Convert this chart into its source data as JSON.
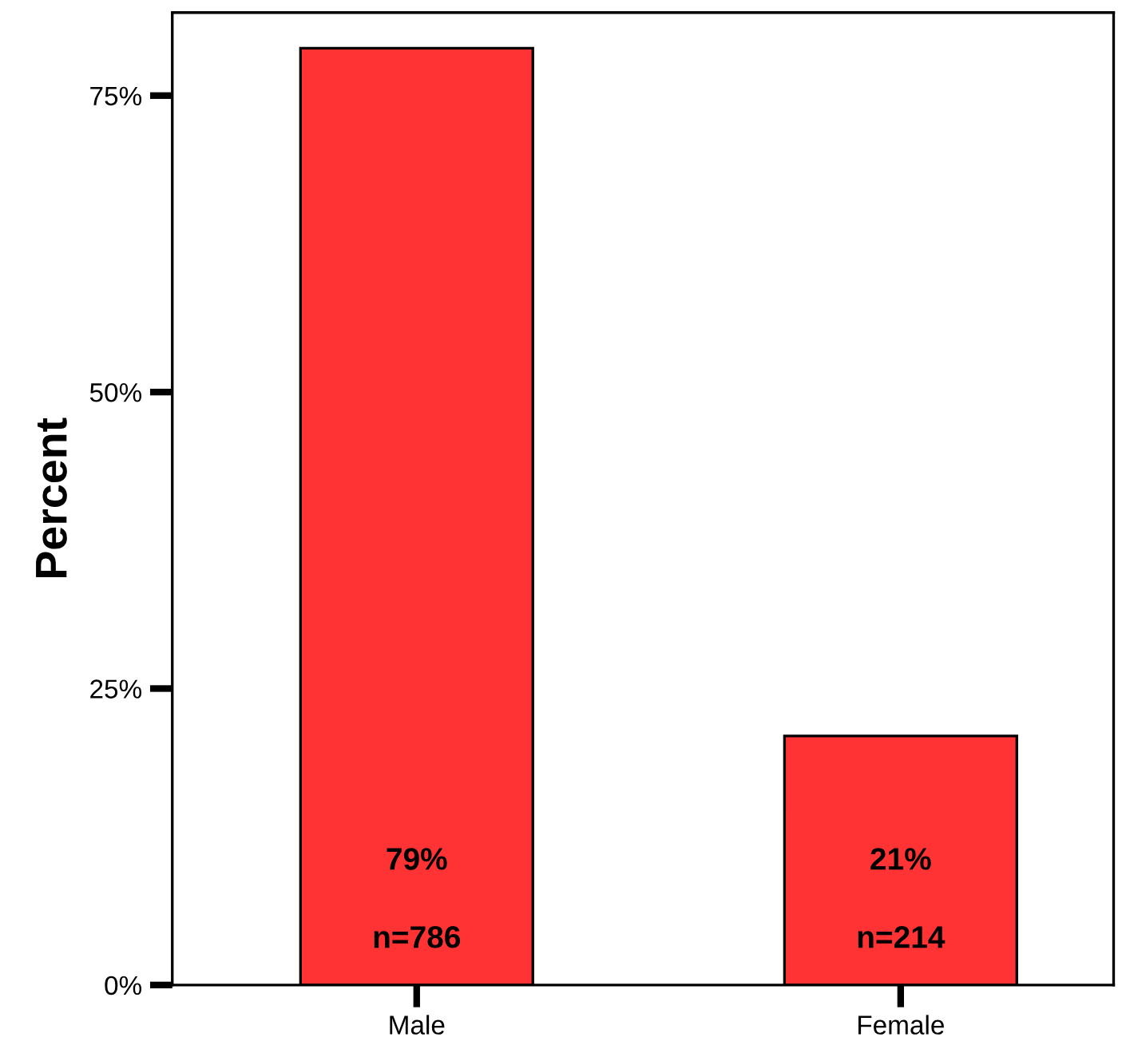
{
  "chart_data": {
    "type": "bar",
    "ylabel": "Percent",
    "categories": [
      "Male",
      "Female"
    ],
    "values": [
      79,
      21
    ],
    "value_labels": [
      "79%\n\nn=786",
      "21%\n\nn=214"
    ],
    "color": "#ff3333",
    "ylim": [
      0,
      82
    ],
    "yticks": [
      {
        "value": 0,
        "label": "0%"
      },
      {
        "value": 25,
        "label": "25%"
      },
      {
        "value": 50,
        "label": "50%"
      },
      {
        "value": 75,
        "label": "75%"
      }
    ],
    "grid": false,
    "legend": false
  }
}
